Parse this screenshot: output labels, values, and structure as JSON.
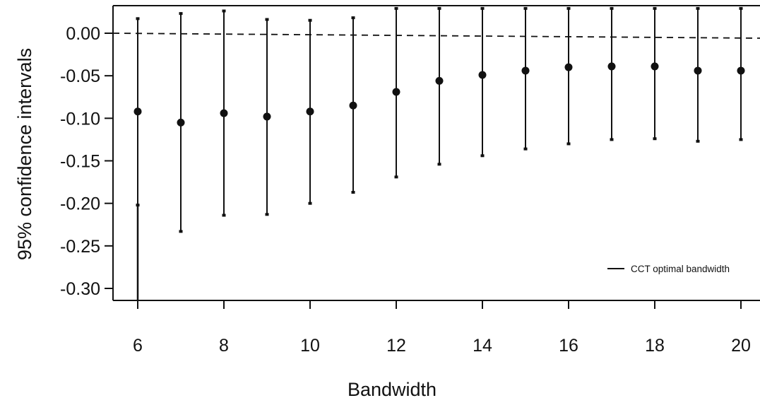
{
  "chart_data": {
    "type": "scatter",
    "title": "",
    "xlabel": "Bandwidth",
    "ylabel": "95% confidence intervals",
    "x_ticks": [
      6,
      8,
      10,
      12,
      14,
      16,
      18,
      20
    ],
    "y_ticks": [
      "0.00",
      "-0.05",
      "-0.10",
      "-0.15",
      "-0.20",
      "-0.25",
      "-0.30"
    ],
    "xlim": [
      5.6,
      20.4
    ],
    "ylim": [
      -0.313,
      0.03
    ],
    "reference_line": {
      "y": 0.0,
      "style": "dashed"
    },
    "legend": {
      "label": "CCT optimal bandwidth",
      "position": "bottom-right"
    },
    "series": [
      {
        "points": [
          {
            "x": 6,
            "estimate": -0.092,
            "lower": -0.202,
            "upper": 0.018
          },
          {
            "x": 7,
            "estimate": -0.105,
            "lower": -0.233,
            "upper": 0.024
          },
          {
            "x": 8,
            "estimate": -0.094,
            "lower": -0.214,
            "upper": 0.027
          },
          {
            "x": 9,
            "estimate": -0.098,
            "lower": -0.213,
            "upper": 0.017
          },
          {
            "x": 10,
            "estimate": -0.092,
            "lower": -0.2,
            "upper": 0.016
          },
          {
            "x": 11,
            "estimate": -0.085,
            "lower": -0.187,
            "upper": 0.019
          },
          {
            "x": 12,
            "estimate": -0.069,
            "lower": -0.169,
            "upper": 0.03
          },
          {
            "x": 13,
            "estimate": -0.056,
            "lower": -0.154,
            "upper": 0.03
          },
          {
            "x": 14,
            "estimate": -0.049,
            "lower": -0.144,
            "upper": 0.03
          },
          {
            "x": 15,
            "estimate": -0.044,
            "lower": -0.136,
            "upper": 0.03
          },
          {
            "x": 16,
            "estimate": -0.04,
            "lower": -0.13,
            "upper": 0.03
          },
          {
            "x": 17,
            "estimate": -0.039,
            "lower": -0.125,
            "upper": 0.03
          },
          {
            "x": 18,
            "estimate": -0.039,
            "lower": -0.124,
            "upper": 0.03
          },
          {
            "x": 19,
            "estimate": -0.044,
            "lower": -0.127,
            "upper": 0.03
          },
          {
            "x": 20,
            "estimate": -0.044,
            "lower": -0.125,
            "upper": 0.03
          }
        ]
      }
    ]
  }
}
